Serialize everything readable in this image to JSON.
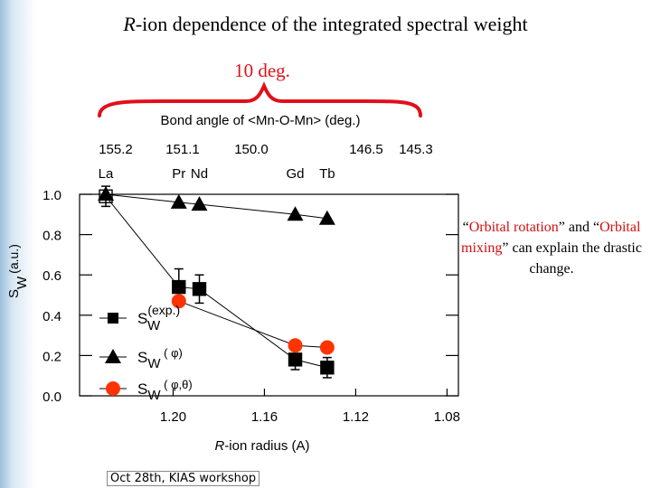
{
  "title_prefix": "R",
  "title_rest": "-ion dependence of the integrated spectral weight",
  "angle_note": "10 deg.",
  "note": {
    "part1": "“",
    "red1": "Orbital rotation",
    "part2": "” and “",
    "red2": "Orbital mixing",
    "part3": "” can explain the drastic change."
  },
  "footer": "Oct 28th, KIAS workshop",
  "colors": {
    "title_red": "#e0101b",
    "series3": "#ff3300"
  },
  "chart_data": {
    "type": "scatter",
    "top_axis_label": "Bond angle of <Mn-O-Mn> (deg.)",
    "top_ticks": [
      {
        "x": 1.2295,
        "label": "155.2"
      },
      {
        "x": 1.1975,
        "label": "151.1"
      },
      {
        "x": 1.1895,
        "label": "150.0"
      },
      {
        "x": 1.1465,
        "label": "146.5"
      },
      {
        "x": 1.1325,
        "label": "145.3"
      }
    ],
    "ions": [
      {
        "x": 1.2295,
        "label": "La"
      },
      {
        "x": 1.1975,
        "label": "Pr"
      },
      {
        "x": 1.1885,
        "label": "Nd"
      },
      {
        "x": 1.1465,
        "label": "Gd"
      },
      {
        "x": 1.1325,
        "label": "Tb"
      }
    ],
    "xlabel_italic": "R",
    "xlabel_rest": "-ion radius (A)",
    "ylabel_main": "S",
    "ylabel_sub": "W",
    "ylabel_unit": "(a.u.)",
    "xlim": [
      1.241,
      1.075
    ],
    "ylim": [
      0.0,
      1.0
    ],
    "x_ticks": [
      {
        "v": 1.2,
        "label": "1.20"
      },
      {
        "v": 1.16,
        "label": "1.16"
      },
      {
        "v": 1.12,
        "label": "1.12"
      },
      {
        "v": 1.08,
        "label": "1.08"
      }
    ],
    "y_ticks": [
      {
        "v": 0.0,
        "label": "0.0"
      },
      {
        "v": 0.2,
        "label": "0.2"
      },
      {
        "v": 0.4,
        "label": "0.4"
      },
      {
        "v": 0.6,
        "label": "0.6"
      },
      {
        "v": 0.8,
        "label": "0.8"
      },
      {
        "v": 1.0,
        "label": "1.0"
      }
    ],
    "series": [
      {
        "key": "exp",
        "legend_main": "S",
        "legend_sub": "W",
        "legend_sup": "(exp.)",
        "marker": "square",
        "color": "#000000",
        "x": [
          1.2295,
          1.1975,
          1.1885,
          1.1465,
          1.1325
        ],
        "y": [
          0.99,
          0.54,
          0.53,
          0.18,
          0.14
        ],
        "yerr": [
          0.05,
          0.09,
          0.07,
          0.05,
          0.05
        ]
      },
      {
        "key": "phi",
        "legend_main": "S",
        "legend_sub": "W",
        "legend_tail": " ( φ)",
        "marker": "triangle",
        "color": "#000000",
        "x": [
          1.2295,
          1.1975,
          1.1885,
          1.1465,
          1.1325
        ],
        "y": [
          1.0,
          0.96,
          0.95,
          0.9,
          0.88
        ]
      },
      {
        "key": "phitheta",
        "legend_main": "S",
        "legend_sub": "W",
        "legend_tail": " ( φ,θ)",
        "marker": "circle",
        "color": "#ff3300",
        "x": [
          1.1975,
          1.1465,
          1.1325
        ],
        "y": [
          0.47,
          0.25,
          0.24
        ]
      }
    ]
  }
}
